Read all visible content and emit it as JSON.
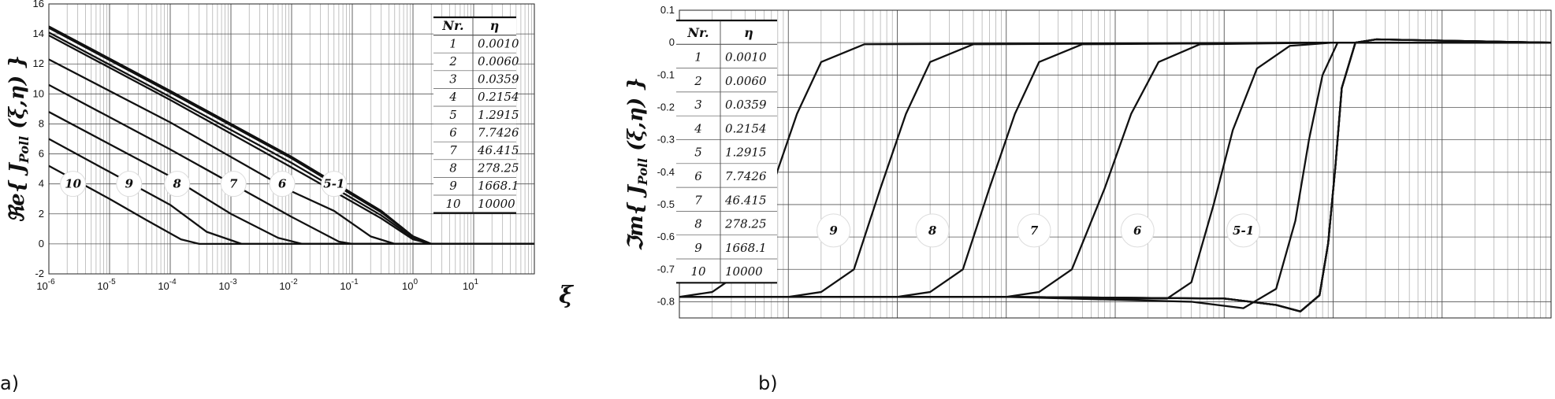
{
  "panel_a_tag": "a)",
  "panel_b_tag": "b)",
  "chart_data": [
    {
      "type": "line",
      "panel": "a)",
      "ylabel": "Re{ J_Poll (ξ,η) }",
      "ylabel_parts": {
        "pre": "ℜe{ J",
        "sub": "Poll",
        "post": " (ξ,η) }"
      },
      "xlabel": "ξ",
      "xscale": "log",
      "xlim": [
        1e-06,
        100
      ],
      "ylim": [
        -2,
        16
      ],
      "yticks": [
        -2,
        0,
        2,
        4,
        6,
        8,
        10,
        12,
        14,
        16
      ],
      "yticklabels": [
        "-2",
        "0",
        "2",
        "4",
        "6",
        "8",
        "10",
        "12",
        "14",
        "16"
      ],
      "xticks": [
        {
          "value": 1e-06,
          "base": "10",
          "exp": "-6"
        },
        {
          "value": 1e-05,
          "base": "10",
          "exp": "-5"
        },
        {
          "value": 0.0001,
          "base": "10",
          "exp": "-4"
        },
        {
          "value": 0.001,
          "base": "10",
          "exp": "-3"
        },
        {
          "value": 0.01,
          "base": "10",
          "exp": "-2"
        },
        {
          "value": 0.1,
          "base": "10",
          "exp": "-1"
        },
        {
          "value": 1,
          "base": "10",
          "exp": "0"
        },
        {
          "value": 10,
          "base": "10",
          "exp": "1"
        }
      ],
      "grid": true,
      "series": [
        {
          "name": "1",
          "x": [
            1e-06,
            0.0001,
            0.01,
            0.3,
            1,
            2,
            100
          ],
          "y": [
            14.5,
            10.2,
            5.8,
            2.2,
            0.5,
            0,
            0
          ]
        },
        {
          "name": "2",
          "x": [
            1e-06,
            0.0001,
            0.01,
            0.3,
            1,
            2,
            100
          ],
          "y": [
            14.5,
            10.2,
            5.8,
            2.2,
            0.5,
            0,
            0
          ]
        },
        {
          "name": "3",
          "x": [
            1e-06,
            0.0001,
            0.01,
            0.3,
            1,
            2,
            100
          ],
          "y": [
            14.4,
            10.1,
            5.7,
            2.1,
            0.5,
            0,
            0
          ]
        },
        {
          "name": "4",
          "x": [
            1e-06,
            0.0001,
            0.01,
            0.3,
            1,
            2,
            100
          ],
          "y": [
            14.1,
            9.8,
            5.4,
            1.9,
            0.4,
            0,
            0
          ]
        },
        {
          "name": "5",
          "x": [
            1e-06,
            0.0001,
            0.01,
            0.3,
            1,
            2,
            100
          ],
          "y": [
            13.9,
            9.6,
            5.1,
            1.7,
            0.3,
            0,
            0
          ]
        },
        {
          "name": "6",
          "x": [
            1e-06,
            0.0001,
            0.01,
            0.05,
            0.2,
            0.5,
            100
          ],
          "y": [
            12.3,
            8.1,
            3.5,
            2.2,
            0.5,
            0,
            0
          ]
        },
        {
          "name": "7",
          "x": [
            1e-06,
            0.0001,
            0.01,
            0.06,
            0.1,
            100
          ],
          "y": [
            10.6,
            6.3,
            1.8,
            0.15,
            0,
            0
          ]
        },
        {
          "name": "8",
          "x": [
            1e-06,
            0.0001,
            0.001,
            0.006,
            0.015,
            100
          ],
          "y": [
            8.8,
            4.5,
            2.0,
            0.4,
            0,
            0
          ]
        },
        {
          "name": "9",
          "x": [
            1e-06,
            1e-05,
            0.0001,
            0.0004,
            0.0015,
            100
          ],
          "y": [
            7.0,
            4.8,
            2.6,
            0.8,
            0,
            0
          ]
        },
        {
          "name": "10",
          "x": [
            1e-06,
            1e-05,
            4e-05,
            0.00015,
            0.0003,
            100
          ],
          "y": [
            5.2,
            3.0,
            1.6,
            0.3,
            0,
            0
          ]
        }
      ],
      "curve_labels": [
        {
          "text": "10",
          "x": 2.5e-06,
          "y": 4.0
        },
        {
          "text": "9",
          "x": 2.1e-05,
          "y": 4.0
        },
        {
          "text": "8",
          "x": 0.00013,
          "y": 4.0
        },
        {
          "text": "7",
          "x": 0.0011,
          "y": 4.0
        },
        {
          "text": "6",
          "x": 0.007,
          "y": 4.0
        },
        {
          "text": "5-1",
          "x": 0.05,
          "y": 4.0
        }
      ],
      "table": {
        "headers": [
          "Nr.",
          "η"
        ],
        "rows": [
          [
            "1",
            "0.0010"
          ],
          [
            "2",
            "0.0060"
          ],
          [
            "3",
            "0.0359"
          ],
          [
            "4",
            "0.2154"
          ],
          [
            "5",
            "1.2915"
          ],
          [
            "6",
            "7.7426"
          ],
          [
            "7",
            "46.415"
          ],
          [
            "8",
            "278.25"
          ],
          [
            "9",
            "1668.1"
          ],
          [
            "10",
            "10000"
          ]
        ]
      }
    },
    {
      "type": "line",
      "panel": "b)",
      "ylabel": "Im{ J_Poll (ξ,η) }",
      "ylabel_parts": {
        "pre": "ℑm{ J",
        "sub": "Poll",
        "post": " (ξ,η) }"
      },
      "xscale": "log",
      "xlim": [
        1e-06,
        100
      ],
      "ylim": [
        -0.85,
        0.1
      ],
      "yticks": [
        0.1,
        0,
        -0.1,
        -0.2,
        -0.3,
        -0.4,
        -0.5,
        -0.6,
        -0.7,
        -0.8
      ],
      "yticklabels": [
        "0.1",
        "0",
        "-0.1",
        "-0.2",
        "-0.3",
        "-0.4",
        "-0.5",
        "-0.6",
        "-0.7",
        "-0.8"
      ],
      "grid": true,
      "series": [
        {
          "name": "1",
          "x": [
            1e-06,
            0.001,
            0.1,
            0.3,
            0.5,
            0.75,
            0.9,
            1.05,
            1.2,
            1.6,
            2.5,
            100
          ],
          "y": [
            -0.785,
            -0.785,
            -0.79,
            -0.81,
            -0.83,
            -0.78,
            -0.62,
            -0.38,
            -0.14,
            0.0,
            0.01,
            0.0
          ]
        },
        {
          "name": "2",
          "x": [
            1e-06,
            0.001,
            0.1,
            0.3,
            0.5,
            0.75,
            0.9,
            1.05,
            1.2,
            1.6,
            2.5,
            100
          ],
          "y": [
            -0.785,
            -0.785,
            -0.79,
            -0.81,
            -0.83,
            -0.78,
            -0.62,
            -0.38,
            -0.14,
            0.0,
            0.01,
            0.0
          ]
        },
        {
          "name": "3",
          "x": [
            1e-06,
            0.001,
            0.1,
            0.3,
            0.5,
            0.75,
            0.9,
            1.05,
            1.2,
            1.6,
            2.5,
            100
          ],
          "y": [
            -0.785,
            -0.785,
            -0.79,
            -0.81,
            -0.83,
            -0.78,
            -0.62,
            -0.38,
            -0.14,
            0.0,
            0.01,
            0.0
          ]
        },
        {
          "name": "4",
          "x": [
            1e-06,
            0.001,
            0.1,
            0.3,
            0.5,
            0.75,
            0.9,
            1.05,
            1.2,
            1.6,
            2.5,
            100
          ],
          "y": [
            -0.785,
            -0.785,
            -0.79,
            -0.81,
            -0.83,
            -0.78,
            -0.62,
            -0.38,
            -0.14,
            0.0,
            0.01,
            0.0
          ]
        },
        {
          "name": "5",
          "x": [
            1e-06,
            0.001,
            0.05,
            0.15,
            0.3,
            0.45,
            0.6,
            0.8,
            1.1,
            2.0,
            100
          ],
          "y": [
            -0.785,
            -0.785,
            -0.8,
            -0.82,
            -0.76,
            -0.55,
            -0.3,
            -0.1,
            0.0,
            0.0,
            0.0
          ]
        },
        {
          "name": "6",
          "x": [
            1e-06,
            0.001,
            0.01,
            0.03,
            0.05,
            0.08,
            0.12,
            0.2,
            0.4,
            1.0,
            100
          ],
          "y": [
            -0.785,
            -0.785,
            -0.79,
            -0.79,
            -0.74,
            -0.5,
            -0.27,
            -0.08,
            -0.01,
            0.0,
            0.0
          ]
        },
        {
          "name": "7",
          "x": [
            1e-06,
            0.0001,
            0.001,
            0.002,
            0.004,
            0.008,
            0.014,
            0.025,
            0.06,
            1.0,
            100
          ],
          "y": [
            -0.785,
            -0.785,
            -0.785,
            -0.77,
            -0.7,
            -0.45,
            -0.22,
            -0.06,
            -0.005,
            0.0,
            0.0
          ]
        },
        {
          "name": "8",
          "x": [
            1e-06,
            1e-05,
            0.0001,
            0.0002,
            0.0004,
            0.0007,
            0.0012,
            0.002,
            0.005,
            1.0,
            100
          ],
          "y": [
            -0.785,
            -0.785,
            -0.785,
            -0.77,
            -0.7,
            -0.45,
            -0.22,
            -0.06,
            -0.005,
            0.0,
            0.0
          ]
        },
        {
          "name": "9",
          "x": [
            1e-06,
            1e-05,
            2e-05,
            4e-05,
            7e-05,
            0.00012,
            0.0002,
            0.0005,
            1.0,
            100
          ],
          "y": [
            -0.785,
            -0.785,
            -0.77,
            -0.7,
            -0.45,
            -0.22,
            -0.06,
            -0.005,
            0.0,
            0.0
          ]
        },
        {
          "name": "10",
          "x": [
            1e-06,
            2e-06,
            4e-06,
            7e-06,
            1.2e-05,
            2e-05,
            5e-05,
            1.0,
            100
          ],
          "y": [
            -0.785,
            -0.77,
            -0.7,
            -0.45,
            -0.22,
            -0.06,
            -0.005,
            0.0,
            0.0
          ]
        }
      ],
      "curve_labels": [
        {
          "text": "10",
          "x": 3e-06,
          "y": -0.58
        },
        {
          "text": "9",
          "x": 2.6e-05,
          "y": -0.58
        },
        {
          "text": "8",
          "x": 0.00021,
          "y": -0.58
        },
        {
          "text": "7",
          "x": 0.0018,
          "y": -0.58
        },
        {
          "text": "6",
          "x": 0.016,
          "y": -0.58
        },
        {
          "text": "5-1",
          "x": 0.15,
          "y": -0.58
        }
      ],
      "table": {
        "headers": [
          "Nr.",
          "η"
        ],
        "rows": [
          [
            "1",
            "0.0010"
          ],
          [
            "2",
            "0.0060"
          ],
          [
            "3",
            "0.0359"
          ],
          [
            "4",
            "0.2154"
          ],
          [
            "5",
            "1.2915"
          ],
          [
            "6",
            "7.7426"
          ],
          [
            "7",
            "46.415"
          ],
          [
            "8",
            "278.25"
          ],
          [
            "9",
            "1668.1"
          ],
          [
            "10",
            "10000"
          ]
        ]
      }
    }
  ]
}
